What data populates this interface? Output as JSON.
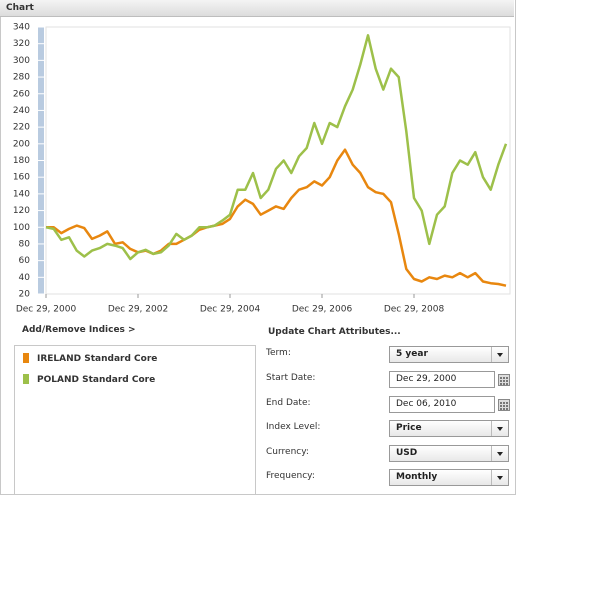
{
  "header": {
    "title": "Chart"
  },
  "chart_data": {
    "type": "line",
    "categories": [
      "Dec 29, 2000",
      null,
      null,
      null,
      null,
      null,
      null,
      null,
      null,
      null,
      null,
      null,
      "Dec 29, 2002",
      null,
      null,
      null,
      null,
      null,
      null,
      null,
      null,
      null,
      null,
      null,
      "Dec 29, 2004",
      null,
      null,
      null,
      null,
      null,
      null,
      null,
      null,
      null,
      null,
      null,
      "Dec 29, 2006",
      null,
      null,
      null,
      null,
      null,
      null,
      null,
      null,
      null,
      null,
      null,
      "Dec 29, 2008",
      null,
      null,
      null,
      null,
      null,
      null,
      null,
      null,
      null,
      null,
      null,
      null
    ],
    "series": [
      {
        "name": "IRELAND Standard Core",
        "color": "#e8870f",
        "values": [
          100,
          100,
          93,
          98,
          102,
          99,
          86,
          90,
          95,
          80,
          82,
          74,
          70,
          72,
          68,
          72,
          80,
          80,
          85,
          90,
          97,
          100,
          102,
          104,
          110,
          125,
          133,
          128,
          115,
          120,
          125,
          122,
          135,
          145,
          148,
          155,
          150,
          160,
          180,
          193,
          175,
          165,
          148,
          142,
          140,
          130,
          92,
          50,
          38,
          35,
          40,
          38,
          42,
          40,
          45,
          40,
          45,
          35,
          33,
          32,
          30
        ]
      },
      {
        "name": "POLAND Standard Core",
        "color": "#9dc04a",
        "values": [
          100,
          98,
          85,
          88,
          72,
          65,
          72,
          75,
          80,
          78,
          75,
          62,
          70,
          73,
          68,
          70,
          78,
          92,
          85,
          90,
          100,
          100,
          102,
          108,
          115,
          145,
          145,
          165,
          135,
          145,
          170,
          180,
          165,
          185,
          195,
          225,
          200,
          225,
          220,
          245,
          265,
          295,
          330,
          290,
          265,
          290,
          280,
          215,
          135,
          120,
          80,
          115,
          125,
          165,
          180,
          175,
          190,
          160,
          145,
          175,
          200
        ]
      }
    ],
    "ylim": [
      20,
      340
    ],
    "yticks": [
      20,
      40,
      60,
      80,
      100,
      120,
      140,
      160,
      180,
      200,
      220,
      240,
      260,
      280,
      300,
      320,
      340
    ]
  },
  "indices": {
    "link": "Add/Remove Indices >"
  },
  "controls": {
    "title": "Update Chart Attributes...",
    "fields": [
      {
        "label": "Term:",
        "value": "5 year",
        "kind": "select"
      },
      {
        "label": "Start Date:",
        "value": "Dec 29, 2000",
        "kind": "date"
      },
      {
        "label": "End Date:",
        "value": "Dec 06, 2010",
        "kind": "date"
      },
      {
        "label": "Index Level:",
        "value": "Price",
        "kind": "select"
      },
      {
        "label": "Currency:",
        "value": "USD",
        "kind": "select"
      },
      {
        "label": "Frequency:",
        "value": "Monthly",
        "kind": "select"
      }
    ]
  }
}
